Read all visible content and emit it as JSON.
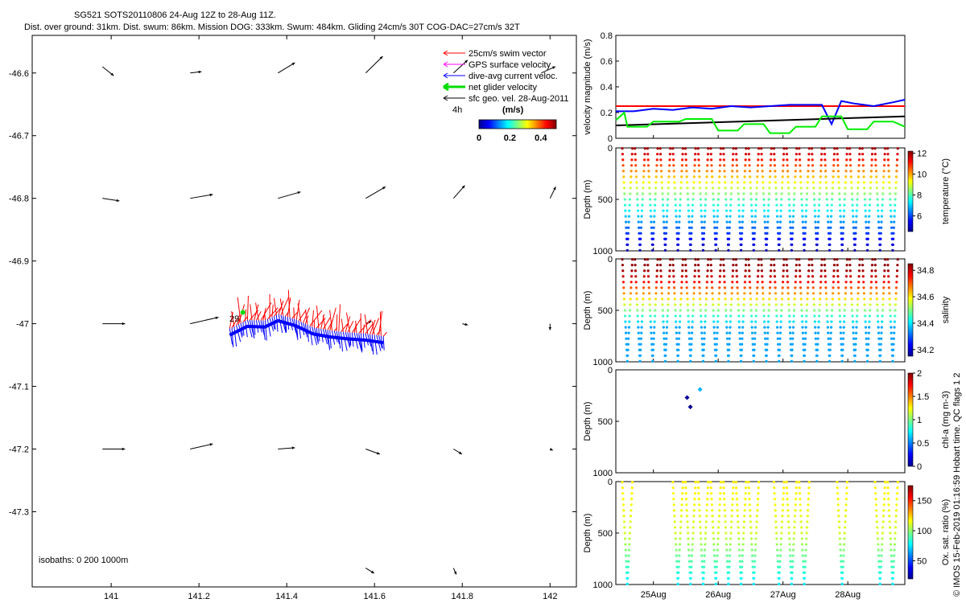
{
  "header": {
    "title": "SG521 SOTS20110806 24-Aug 12Z to 28-Aug 11Z.",
    "subtitle": "Dist. over ground: 31km. Dist. swum: 86km. Mission DOG: 333km. Swum: 484km. Gliding 24cm/s 30T COG-DAC=27cm/s 32T"
  },
  "side_text": "© IMOS 15-Feb-2019 01:16:59 Hobart time. QC flags 1  2",
  "chart_data": [
    {
      "type": "scatter",
      "panel": "map",
      "xlim": [
        140.82,
        142.06
      ],
      "ylim": [
        -47.42,
        -46.54
      ],
      "xticks": [
        141,
        141.2,
        141.4,
        141.6,
        141.8,
        142
      ],
      "xtick_labels": [
        "141",
        "141.2",
        "141.4",
        "141.6",
        "141.8",
        "142"
      ],
      "yticks": [
        -46.6,
        -46.7,
        -46.8,
        -46.9,
        -47,
        -47.1,
        -47.2,
        -47.3
      ],
      "ytick_labels": [
        "-46.6",
        "-46.7",
        "-46.8",
        "-46.9",
        "-47",
        "-47.1",
        "-47.2",
        "-47.3"
      ],
      "legend": {
        "placement": "top-right",
        "entries": [
          {
            "label": "25cm/s swim vector",
            "color": "#ff0000"
          },
          {
            "label": "GPS surface velocity",
            "color": "#ff00ff"
          },
          {
            "label": "dive-avg current veloc.",
            "color": "#0000ff"
          },
          {
            "label": "net glider velocity",
            "color": "#00dd00"
          },
          {
            "label": "sfc geo. vel. 28-Aug-2011",
            "color": "#000000"
          }
        ]
      },
      "time_scale_label": "4h",
      "colorbar": {
        "label": "(m/s)",
        "ticks": [
          0,
          0.2,
          0.4
        ],
        "tick_labels": [
          "0",
          "0.2",
          "0.4"
        ],
        "range": [
          0,
          0.5
        ]
      },
      "isobaths_label": "isobaths: 0   200  1000m",
      "start_label": "29",
      "track": {
        "lon": [
          141.27,
          141.31,
          141.35,
          141.38,
          141.42,
          141.46,
          141.5,
          141.54,
          141.58,
          141.62
        ],
        "lat": [
          -47.008,
          -46.994,
          -46.995,
          -46.985,
          -46.993,
          -47.006,
          -47.011,
          -47.014,
          -47.016,
          -47.02
        ]
      },
      "start_point": {
        "lon": 141.3,
        "lat": -46.982
      },
      "sfc_vectors": {
        "lon": [
          140.98,
          141.18,
          141.38,
          141.58,
          141.78,
          141.98,
          140.98,
          141.18,
          141.38,
          141.58,
          141.78,
          142.0,
          140.98,
          141.18,
          141.58,
          141.8,
          142.0,
          140.98,
          141.18,
          141.38,
          141.58,
          141.78,
          142.0,
          141.58,
          141.78
        ],
        "lat": [
          -46.59,
          -46.6,
          -46.6,
          -46.6,
          -46.6,
          -46.6,
          -46.8,
          -46.8,
          -46.8,
          -46.8,
          -46.8,
          -46.8,
          -47,
          -47,
          -47,
          -47,
          -47,
          -47.2,
          -47.2,
          -47.2,
          -47.2,
          -47.2,
          -47.2,
          -47.39,
          -47.39
        ],
        "u": [
          0.04,
          0.04,
          0.06,
          0.06,
          0.05,
          0.05,
          0.06,
          0.08,
          0.08,
          0.07,
          0.04,
          0.02,
          0.08,
          0.1,
          0.02,
          0.02,
          0.0,
          0.08,
          0.08,
          0.06,
          0.05,
          0.03,
          0.01,
          0.03,
          0.01
        ],
        "v": [
          -0.07,
          0.01,
          0.08,
          0.13,
          0.1,
          0.05,
          -0.02,
          0.03,
          0.05,
          0.09,
          0.1,
          0.09,
          0.0,
          0.05,
          0.02,
          -0.01,
          -0.05,
          0.0,
          0.04,
          0.01,
          -0.04,
          -0.04,
          -0.01,
          -0.04,
          -0.05
        ]
      }
    },
    {
      "type": "line",
      "panel": "velocity",
      "ylabel": "velocity magnitude (m/s)",
      "xlim": [
        24.42,
        28.88
      ],
      "ylim": [
        0,
        0.8
      ],
      "yticks": [
        0,
        0.2,
        0.4,
        0.6,
        0.8
      ],
      "ytick_labels": [
        "0",
        "0.2",
        "0.4",
        "0.6",
        "0.8"
      ],
      "series": [
        {
          "color": "#ff0000",
          "x": [
            24.42,
            28.88
          ],
          "y": [
            0.25,
            0.25
          ]
        },
        {
          "color": "#0000ff",
          "x": [
            24.42,
            24.7,
            25.0,
            25.3,
            25.6,
            25.9,
            26.2,
            26.5,
            26.8,
            27.1,
            27.4,
            27.6,
            27.75,
            27.9,
            28.1,
            28.4,
            28.7,
            28.88
          ],
          "y": [
            0.21,
            0.21,
            0.23,
            0.22,
            0.24,
            0.23,
            0.25,
            0.24,
            0.25,
            0.26,
            0.26,
            0.26,
            0.11,
            0.29,
            0.27,
            0.25,
            0.28,
            0.3
          ]
        },
        {
          "color": "#000000",
          "x": [
            24.42,
            28.88
          ],
          "y": [
            0.1,
            0.17
          ]
        },
        {
          "color": "#00ee00",
          "x": [
            24.42,
            24.55,
            24.6,
            24.9,
            25.0,
            25.4,
            25.5,
            25.9,
            26.0,
            26.3,
            26.4,
            26.7,
            26.8,
            27.1,
            27.2,
            27.5,
            27.6,
            27.9,
            28.0,
            28.3,
            28.4,
            28.7,
            28.88
          ],
          "y": [
            0.14,
            0.2,
            0.09,
            0.09,
            0.13,
            0.13,
            0.15,
            0.15,
            0.06,
            0.06,
            0.11,
            0.11,
            0.04,
            0.04,
            0.09,
            0.09,
            0.17,
            0.17,
            0.07,
            0.07,
            0.13,
            0.13,
            0.09
          ]
        }
      ]
    },
    {
      "type": "scatter",
      "panel": "temperature",
      "ylabel": "Depth (m)",
      "clabel": "temperature (°C)",
      "xlim": [
        24.42,
        28.88
      ],
      "ylim": [
        1000,
        0
      ],
      "yticks": [
        0,
        500,
        1000
      ],
      "ytick_labels": [
        "0",
        "500",
        "1000"
      ],
      "clim": [
        4.5,
        12.2
      ],
      "cticks": [
        6,
        8,
        10,
        12
      ],
      "ctick_labels": [
        "6",
        "8",
        "10",
        "12"
      ],
      "profile": {
        "depth": [
          0,
          500,
          1000
        ],
        "value": [
          12,
          8,
          4.8
        ]
      },
      "dive_period_days": 0.195,
      "dive_start_day": 24.52,
      "dive_count": 22
    },
    {
      "type": "scatter",
      "panel": "salinity",
      "ylabel": "Depth (m)",
      "clabel": "salinity",
      "xlim": [
        24.42,
        28.88
      ],
      "ylim": [
        1000,
        0
      ],
      "yticks": [
        0,
        500,
        1000
      ],
      "ytick_labels": [
        "0",
        "500",
        "1000"
      ],
      "clim": [
        34.15,
        34.85
      ],
      "cticks": [
        34.2,
        34.4,
        34.6,
        34.8
      ],
      "ctick_labels": [
        "34.2",
        "34.4",
        "34.6",
        "34.8"
      ],
      "profile": {
        "depth": [
          0,
          150,
          400,
          650,
          1000
        ],
        "value": [
          34.85,
          34.82,
          34.6,
          34.35,
          34.35
        ]
      },
      "dive_period_days": 0.195,
      "dive_start_day": 24.52,
      "dive_count": 22
    },
    {
      "type": "scatter",
      "panel": "chlorophyll",
      "ylabel": "Depth (m)",
      "clabel": "chl-a (mg m-3)",
      "xlim": [
        24.42,
        28.88
      ],
      "ylim": [
        1000,
        0
      ],
      "yticks": [
        0,
        500,
        1000
      ],
      "ytick_labels": [
        "0",
        "500",
        "1000"
      ],
      "clim": [
        0,
        2
      ],
      "cticks": [
        0,
        0.5,
        1,
        1.5,
        2
      ],
      "ctick_labels": [
        "0",
        "0.5",
        "1",
        "1.5",
        "2"
      ],
      "points": {
        "x": [
          25.52,
          25.57,
          25.72
        ],
        "y": [
          270,
          360,
          190
        ],
        "value": [
          0.05,
          0.05,
          0.6
        ]
      }
    },
    {
      "type": "scatter",
      "panel": "oxygen",
      "ylabel": "Depth (m)",
      "clabel": "Ox. sat. ratio (%)",
      "xlim": [
        24.42,
        28.88
      ],
      "ylim": [
        1000,
        0
      ],
      "yticks": [
        0,
        500,
        1000
      ],
      "ytick_labels": [
        "0",
        "500",
        "1000"
      ],
      "xticks": [
        25,
        26,
        27,
        28
      ],
      "xtick_labels": [
        "25Aug",
        "26Aug",
        "27Aug",
        "28Aug"
      ],
      "clim": [
        20,
        175
      ],
      "cticks": [
        50,
        100,
        150
      ],
      "ctick_labels": [
        "50",
        "100",
        "150"
      ],
      "profile": {
        "depth": [
          0,
          500,
          1000
        ],
        "value": [
          120,
          110,
          75
        ]
      },
      "dive_period_days": 0.195,
      "dive_start_day": 24.52,
      "dive_count": 22,
      "skip_dives": [
        1,
        2,
        3,
        11,
        15,
        16,
        18,
        19
      ]
    }
  ]
}
